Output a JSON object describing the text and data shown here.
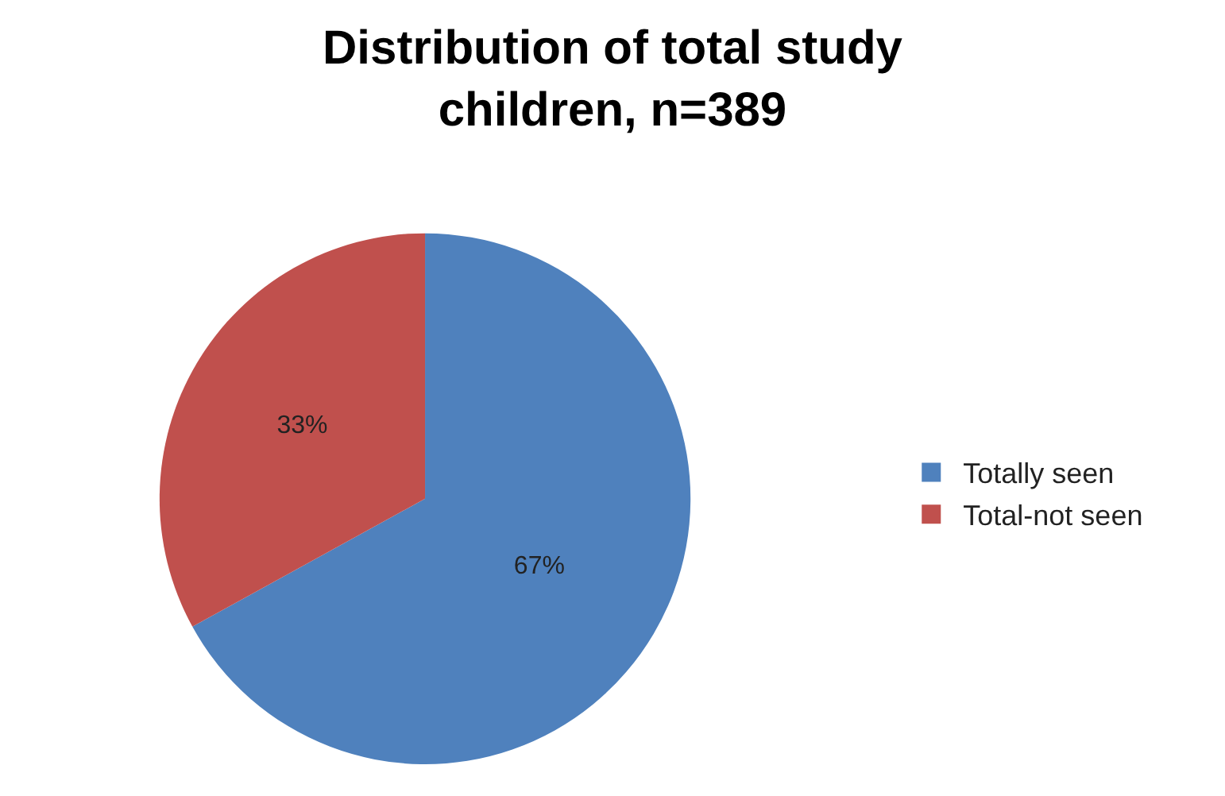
{
  "chart_data": {
    "type": "pie",
    "title": "Distribution of total study\nchildren, n=389",
    "categories": [
      "Totally seen",
      "Total-not seen"
    ],
    "values": [
      67,
      33
    ],
    "colors": [
      "#4f81bd",
      "#c0504d"
    ],
    "value_labels": [
      "67%",
      "33%"
    ],
    "legend": "right"
  }
}
